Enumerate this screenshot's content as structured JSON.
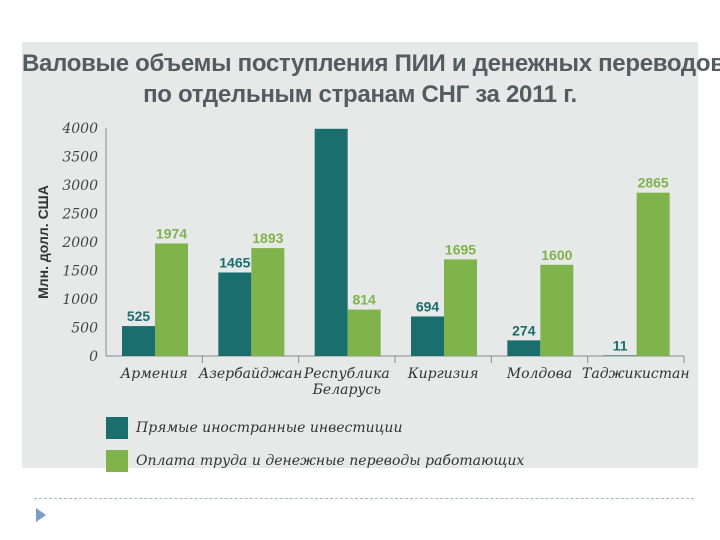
{
  "chart_data": {
    "type": "bar",
    "title": "Валовые объемы поступления ПИИ и денежных переводов",
    "subtitle": "по отдельным странам СНГ за 2011 г.",
    "ylabel": "Млн. долл. США",
    "xlabel": "",
    "ylim": [
      0,
      4000
    ],
    "yticks": [
      "4000",
      "3500",
      "3000",
      "2500",
      "2000",
      "1500",
      "1000",
      "500",
      "0"
    ],
    "categories": [
      "Армения",
      "Азербайджан",
      "Республика\nБеларусь",
      "Киргизия",
      "Молдова",
      "Таджикистан"
    ],
    "series": [
      {
        "name": "Прямые иностранные инвестиции",
        "color": "#1a6e6e",
        "values": [
          525,
          1465,
          3986,
          694,
          274,
          11
        ]
      },
      {
        "name": "Оплата труда и денежные переводы работающих",
        "color": "#7fb34c",
        "values": [
          1974,
          1893,
          814,
          1695,
          1600,
          2865
        ]
      }
    ],
    "legend_position": "bottom-left"
  }
}
